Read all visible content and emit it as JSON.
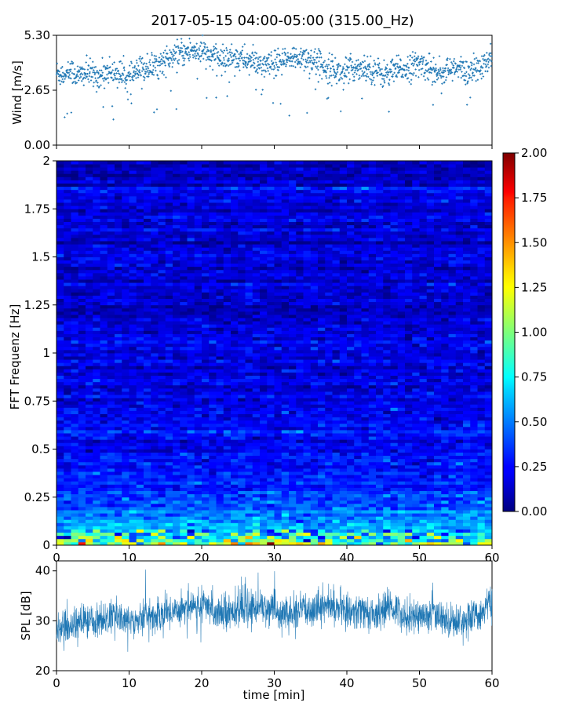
{
  "title": "2017-05-15 04:00-05:00 (315.00_Hz)",
  "chart_data": [
    {
      "type": "scatter",
      "ylabel": "Wind [m/s]",
      "xlim": [
        0,
        60
      ],
      "ylim": [
        0,
        5.3
      ],
      "yticks": [
        "0.00",
        "2.65",
        "5.30"
      ],
      "color": "#1f77b4",
      "series": [
        {
          "values_summary": "x: minutes 0–60, y: wind speed points",
          "x": [
            0,
            1,
            2,
            3,
            4,
            5,
            6,
            7,
            8,
            9,
            10,
            11,
            12,
            13,
            14,
            15,
            16,
            17,
            18,
            19,
            20,
            21,
            22,
            23,
            24,
            25,
            26,
            27,
            28,
            29,
            30,
            31,
            32,
            33,
            34,
            35,
            36,
            37,
            38,
            39,
            40,
            41,
            42,
            43,
            44,
            45,
            46,
            47,
            48,
            49,
            50,
            51,
            52,
            53,
            54,
            55,
            56,
            57,
            58,
            59,
            60
          ],
          "y": [
            3.5,
            3.4,
            3.6,
            3.3,
            3.5,
            3.4,
            3.3,
            3.6,
            3.5,
            3.4,
            3.2,
            3.5,
            3.7,
            3.8,
            3.9,
            4.1,
            4.2,
            4.4,
            4.5,
            4.6,
            4.5,
            4.3,
            4.2,
            4.1,
            4.3,
            4.2,
            4.1,
            4.0,
            3.9,
            3.8,
            3.9,
            4.0,
            4.1,
            4.2,
            4.3,
            4.1,
            4.0,
            3.8,
            3.7,
            3.5,
            3.6,
            3.7,
            3.8,
            3.7,
            3.6,
            3.4,
            3.5,
            3.6,
            3.7,
            3.8,
            3.9,
            3.8,
            3.6,
            3.5,
            3.6,
            3.7,
            3.6,
            3.5,
            3.7,
            3.8,
            4.2
          ]
        }
      ]
    },
    {
      "type": "heatmap",
      "ylabel": "FFT Frequenz [Hz]",
      "xlim": [
        0,
        60
      ],
      "ylim": [
        0,
        2
      ],
      "yticks": [
        "0",
        "0.25",
        "0.5",
        "0.75",
        "1",
        "1.25",
        "1.5",
        "1.75",
        "2"
      ],
      "colormap": "jet",
      "colorbar": {
        "range": [
          0,
          2
        ],
        "ticks": [
          "0.00",
          "0.25",
          "0.50",
          "0.75",
          "1.00",
          "1.25",
          "1.50",
          "1.75",
          "2.00"
        ]
      },
      "description_of_values": {
        "freq_profile": [
          {
            "freq": 0.0,
            "level": 1.1
          },
          {
            "freq": 0.05,
            "level": 0.75
          },
          {
            "freq": 0.1,
            "level": 0.55
          },
          {
            "freq": 0.25,
            "level": 0.35
          },
          {
            "freq": 0.5,
            "level": 0.25
          },
          {
            "freq": 1.0,
            "level": 0.18
          },
          {
            "freq": 2.0,
            "level": 0.16
          }
        ]
      }
    },
    {
      "type": "line",
      "ylabel": "SPL [dB]",
      "xlabel": "time [min]",
      "xlim": [
        0,
        60
      ],
      "ylim": [
        20,
        42
      ],
      "xticks": [
        "0",
        "10",
        "20",
        "30",
        "40",
        "50",
        "60"
      ],
      "yticks": [
        "20",
        "30",
        "40"
      ],
      "color": "#1f77b4",
      "series": [
        {
          "x": [
            0,
            2,
            4,
            6,
            8,
            10,
            12,
            14,
            16,
            18,
            20,
            22,
            24,
            26,
            28,
            30,
            32,
            34,
            36,
            38,
            40,
            42,
            44,
            46,
            48,
            50,
            52,
            54,
            56,
            58,
            60
          ],
          "y": [
            28,
            29,
            30,
            30,
            31,
            30,
            31,
            31,
            32,
            33,
            33,
            32,
            32,
            32,
            33,
            32,
            31,
            32,
            33,
            33,
            32,
            32,
            31,
            33,
            31,
            31,
            31,
            30,
            30,
            31,
            34
          ]
        }
      ]
    }
  ]
}
